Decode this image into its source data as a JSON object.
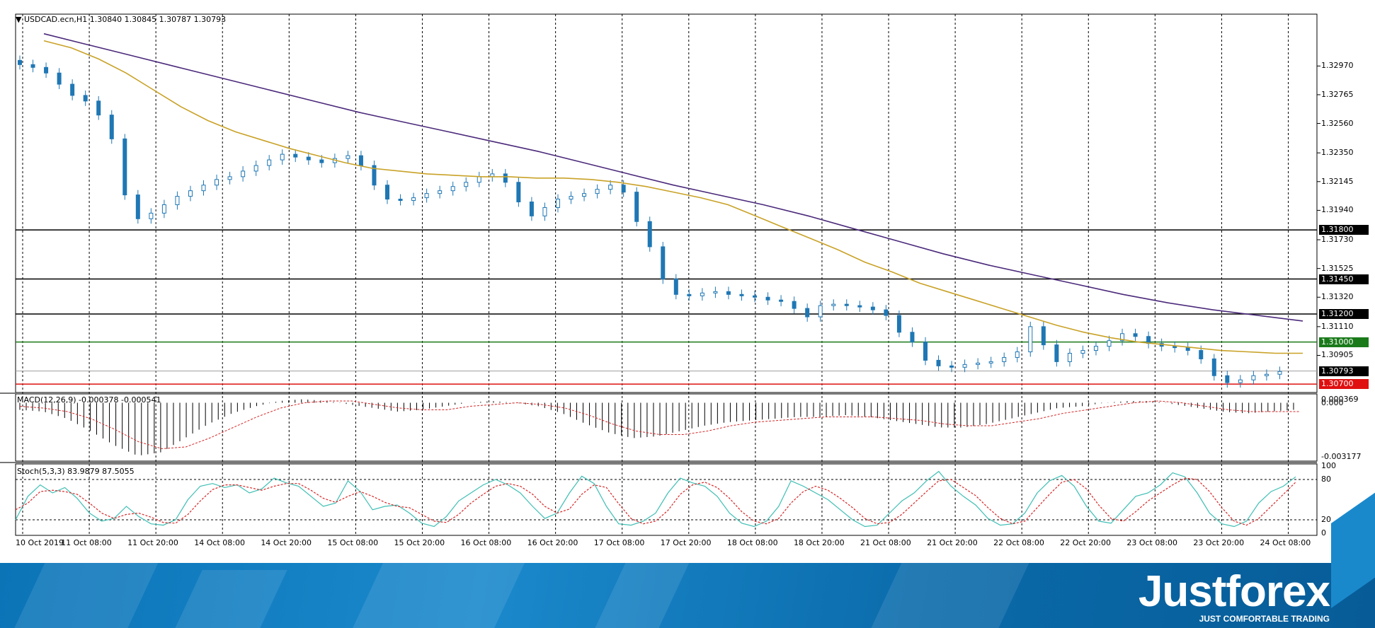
{
  "colors": {
    "bull": "#1f77b4",
    "bear": "#1f77b4",
    "ma_fast": "#c9a227",
    "ma_slow": "#4b2a7b",
    "stoch_main": "#3fbfb4",
    "stoch_signal": "#d62728",
    "macd_signal": "#d62728",
    "level_green": "#1a7a1a",
    "level_red": "#e01010",
    "level_black": "#000000",
    "current": "#9e9e9e"
  },
  "chart_data": [
    {
      "type": "line",
      "kind": "candlestick",
      "title": "USDCAD.ecn,H1 1.30840 1.30845 1.30787 1.30793",
      "symbol": "USDCAD.ecn",
      "timeframe": "H1",
      "ohlc_last": [
        1.3084,
        1.30845,
        1.30787,
        1.30793
      ],
      "x_labels": [
        "10 Oct 2019",
        "11 Oct 08:00",
        "11 Oct 20:00",
        "14 Oct 08:00",
        "14 Oct 20:00",
        "15 Oct 08:00",
        "15 Oct 20:00",
        "16 Oct 08:00",
        "16 Oct 20:00",
        "17 Oct 08:00",
        "17 Oct 20:00",
        "18 Oct 08:00",
        "18 Oct 20:00",
        "21 Oct 08:00",
        "21 Oct 20:00",
        "22 Oct 08:00",
        "22 Oct 20:00",
        "23 Oct 08:00",
        "23 Oct 20:00",
        "24 Oct 08:00"
      ],
      "y_ticks": [
        "1.32970",
        "1.32765",
        "1.32560",
        "1.32350",
        "1.32145",
        "1.31940",
        "1.31730",
        "1.31525",
        "1.31320",
        "1.31110",
        "1.30905"
      ],
      "ylim": [
        1.3064,
        1.3334
      ],
      "grid": true,
      "close_series": [
        1.3298,
        1.3296,
        1.3292,
        1.3284,
        1.3276,
        1.3272,
        1.3262,
        1.3245,
        1.3205,
        1.3188,
        1.3192,
        1.3198,
        1.3204,
        1.3208,
        1.3212,
        1.3216,
        1.3218,
        1.3222,
        1.3226,
        1.323,
        1.3234,
        1.3232,
        1.323,
        1.3228,
        1.3231,
        1.3233,
        1.3226,
        1.3212,
        1.3202,
        1.3201,
        1.3203,
        1.3206,
        1.3208,
        1.3211,
        1.3214,
        1.3218,
        1.322,
        1.3214,
        1.32,
        1.319,
        1.3196,
        1.3202,
        1.3204,
        1.3206,
        1.3209,
        1.3212,
        1.3207,
        1.3186,
        1.3168,
        1.3145,
        1.3134,
        1.3133,
        1.3135,
        1.3136,
        1.3134,
        1.3133,
        1.3132,
        1.313,
        1.3129,
        1.3124,
        1.3118,
        1.3126,
        1.3127,
        1.3126,
        1.3125,
        1.3123,
        1.3119,
        1.3107,
        1.31,
        1.3087,
        1.3083,
        1.3082,
        1.3084,
        1.3085,
        1.3086,
        1.3089,
        1.3093,
        1.3111,
        1.3098,
        1.3086,
        1.3092,
        1.3094,
        1.3097,
        1.3101,
        1.3106,
        1.3104,
        1.3099,
        1.3097,
        1.3096,
        1.3094,
        1.3088,
        1.3076,
        1.3071,
        1.3073,
        1.3076,
        1.3077,
        1.3079
      ],
      "series": [
        {
          "name": "MA fast",
          "values": [
            1.3315,
            1.331,
            1.3302,
            1.3292,
            1.328,
            1.3268,
            1.3258,
            1.325,
            1.3244,
            1.3238,
            1.3233,
            1.3228,
            1.3224,
            1.3222,
            1.322,
            1.3219,
            1.3218,
            1.3218,
            1.3217,
            1.3217,
            1.3216,
            1.3214,
            1.3211,
            1.3207,
            1.3203,
            1.3198,
            1.319,
            1.3182,
            1.3174,
            1.3166,
            1.3157,
            1.315,
            1.3142,
            1.3136,
            1.313,
            1.3124,
            1.3118,
            1.3112,
            1.3107,
            1.3103,
            1.31,
            1.3098,
            1.3096,
            1.3094,
            1.3093,
            1.3092,
            1.3092
          ]
        },
        {
          "name": "MA slow",
          "values": [
            1.332,
            1.3312,
            1.3304,
            1.3296,
            1.3288,
            1.328,
            1.3272,
            1.3264,
            1.3257,
            1.325,
            1.3243,
            1.3236,
            1.3228,
            1.322,
            1.3212,
            1.3205,
            1.3198,
            1.319,
            1.3181,
            1.3172,
            1.3163,
            1.3155,
            1.3148,
            1.3141,
            1.3134,
            1.3128,
            1.3123,
            1.3119,
            1.3115
          ]
        }
      ],
      "levels": [
        {
          "label": "1.31800",
          "value": 1.318,
          "color": "#000000"
        },
        {
          "label": "1.31450",
          "value": 1.3145,
          "color": "#000000"
        },
        {
          "label": "1.31200",
          "value": 1.312,
          "color": "#000000"
        },
        {
          "label": "1.31000",
          "value": 1.31,
          "color": "#1a7a1a"
        },
        {
          "label": "1.30793",
          "value": 1.30793,
          "color": "#9e9e9e"
        },
        {
          "label": "1.30700",
          "value": 1.307,
          "color": "#e01010"
        }
      ]
    },
    {
      "type": "bar",
      "title": "MACD(12,26,9) -0.000378 -0.000541",
      "y_ticks": [
        "0.000369",
        "0.000",
        "-0.003177"
      ],
      "ylim": [
        -0.0033,
        0.0005
      ],
      "series": [
        {
          "name": "MACD",
          "values": [
            -0.0004,
            -0.0005,
            -0.0009,
            -0.0016,
            -0.0024,
            -0.003,
            -0.0028,
            -0.002,
            -0.0012,
            -0.0006,
            -0.0002,
            0.0001,
            0.0002,
            0.0001,
            -0.0001,
            -0.0003,
            -0.0005,
            -0.0004,
            -0.0002,
            0.0,
            0.0001,
            0.0,
            -0.0002,
            -0.0006,
            -0.0012,
            -0.0017,
            -0.002,
            -0.0019,
            -0.0016,
            -0.0013,
            -0.0011,
            -0.001,
            -0.0009,
            -0.0008,
            -0.0008,
            -0.0007,
            -0.0008,
            -0.001,
            -0.0012,
            -0.0014,
            -0.0014,
            -0.0012,
            -0.0009,
            -0.0006,
            -0.0003,
            -0.0002,
            0.0,
            0.0001,
            0.0001,
            -0.0001,
            -0.0003,
            -0.0005,
            -0.0006,
            -0.0005,
            -0.0004
          ]
        },
        {
          "name": "Signal",
          "values": [
            -0.0002,
            -0.0003,
            -0.0005,
            -0.0009,
            -0.0015,
            -0.0022,
            -0.0026,
            -0.0025,
            -0.002,
            -0.0014,
            -0.0008,
            -0.0003,
            0.0,
            0.0001,
            0.0001,
            -0.0001,
            -0.0003,
            -0.0004,
            -0.0004,
            -0.0002,
            -0.0001,
            0.0,
            -0.0001,
            -0.0003,
            -0.0007,
            -0.0012,
            -0.0016,
            -0.0018,
            -0.0018,
            -0.0016,
            -0.0013,
            -0.0011,
            -0.001,
            -0.0009,
            -0.0008,
            -0.0008,
            -0.0008,
            -0.0009,
            -0.001,
            -0.0012,
            -0.0013,
            -0.0013,
            -0.0011,
            -0.0009,
            -0.0006,
            -0.0004,
            -0.0002,
            0.0,
            0.0001,
            0.0,
            -0.0002,
            -0.0004,
            -0.0005,
            -0.0005,
            -0.0005
          ]
        }
      ]
    },
    {
      "type": "line",
      "title": "Stoch(5,3,3) 83.9879 87.5055",
      "y_ticks": [
        "100",
        "80",
        "20",
        "0"
      ],
      "ylim": [
        0,
        100
      ],
      "series": [
        {
          "name": "%K",
          "values": [
            20,
            55,
            72,
            60,
            68,
            52,
            30,
            18,
            22,
            40,
            25,
            14,
            12,
            20,
            50,
            70,
            74,
            68,
            72,
            60,
            66,
            82,
            75,
            70,
            55,
            40,
            45,
            78,
            62,
            35,
            40,
            42,
            30,
            15,
            10,
            25,
            48,
            60,
            72,
            80,
            72,
            60,
            40,
            22,
            30,
            60,
            85,
            74,
            40,
            14,
            12,
            18,
            30,
            60,
            82,
            75,
            70,
            55,
            30,
            15,
            10,
            18,
            40,
            78,
            70,
            60,
            50,
            35,
            20,
            10,
            12,
            30,
            48,
            60,
            78,
            92,
            70,
            55,
            42,
            22,
            12,
            14,
            30,
            60,
            78,
            86,
            70,
            40,
            18,
            15,
            35,
            55,
            60,
            72,
            90,
            84,
            60,
            30,
            14,
            10,
            18,
            45,
            62,
            70,
            84
          ]
        },
        {
          "name": "%D",
          "values": [
            35,
            45,
            62,
            64,
            62,
            58,
            45,
            30,
            22,
            28,
            30,
            24,
            16,
            15,
            28,
            48,
            65,
            72,
            72,
            68,
            64,
            70,
            74,
            74,
            64,
            52,
            46,
            55,
            62,
            55,
            46,
            40,
            38,
            28,
            18,
            16,
            28,
            45,
            58,
            70,
            74,
            70,
            58,
            40,
            30,
            36,
            58,
            72,
            68,
            44,
            22,
            14,
            18,
            34,
            58,
            72,
            76,
            68,
            52,
            32,
            18,
            14,
            22,
            45,
            62,
            70,
            64,
            52,
            38,
            22,
            14,
            16,
            28,
            45,
            62,
            78,
            80,
            68,
            56,
            38,
            22,
            14,
            18,
            38,
            58,
            76,
            80,
            66,
            42,
            22,
            18,
            32,
            48,
            60,
            72,
            82,
            80,
            62,
            38,
            18,
            12,
            22,
            40,
            58,
            76
          ]
        }
      ]
    }
  ],
  "header": {
    "title": "USDCAD.ecn,H1  1.30840 1.30845 1.30787 1.30793"
  },
  "footer": {
    "brand": "Justforex",
    "tagline": "JUST COMFORTABLE TRADING"
  }
}
